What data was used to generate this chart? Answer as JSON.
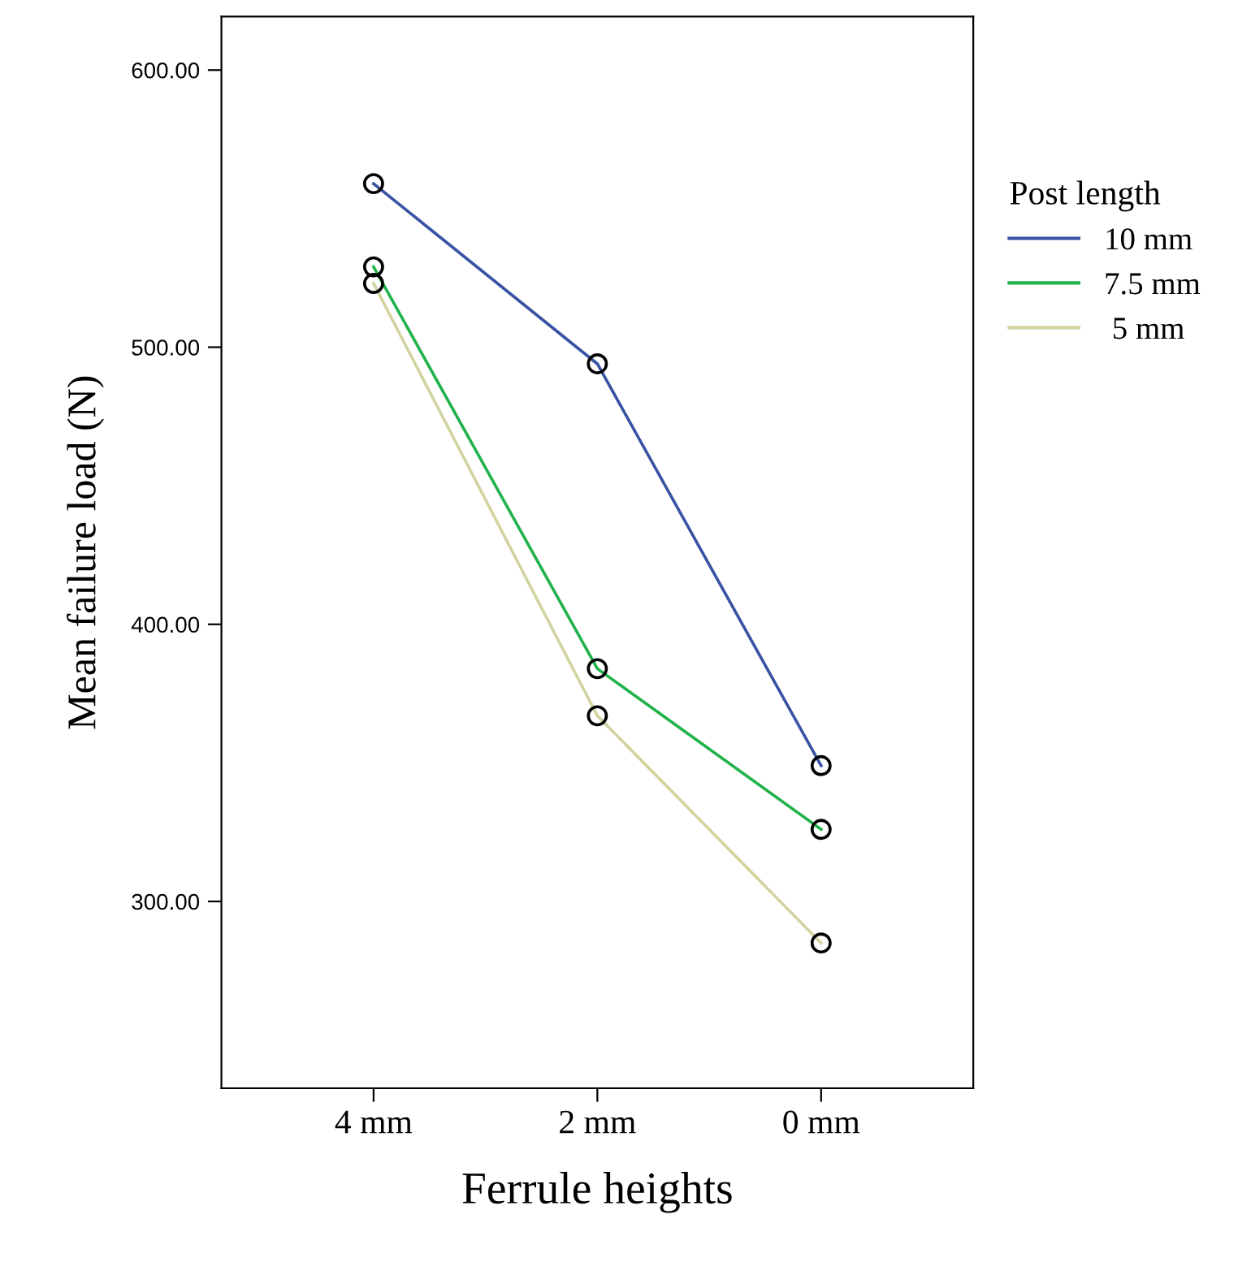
{
  "chart_data": {
    "type": "line",
    "xlabel": "Ferrule heights",
    "ylabel": "Mean failure load (N)",
    "legend_title": "Post length",
    "categories": [
      "4 mm",
      "2 mm",
      "0 mm"
    ],
    "series": [
      {
        "name": "10 mm",
        "color": "#3953a4",
        "values": [
          559,
          494,
          349
        ]
      },
      {
        "name": "7.5 mm",
        "color": "#21b24b",
        "values": [
          529,
          384,
          326
        ]
      },
      {
        "name": " 5 mm",
        "color": "#d3d3a0",
        "values": [
          523,
          367,
          285
        ]
      }
    ],
    "ylim": [
      232.6,
      619.3
    ],
    "yticks": [
      {
        "value": 300,
        "label": "300.00"
      },
      {
        "value": 400,
        "label": "400.00"
      },
      {
        "value": 500,
        "label": "500.00"
      },
      {
        "value": 600,
        "label": "600.00"
      }
    ],
    "marker": "circle",
    "grid": false,
    "legend": "right"
  }
}
